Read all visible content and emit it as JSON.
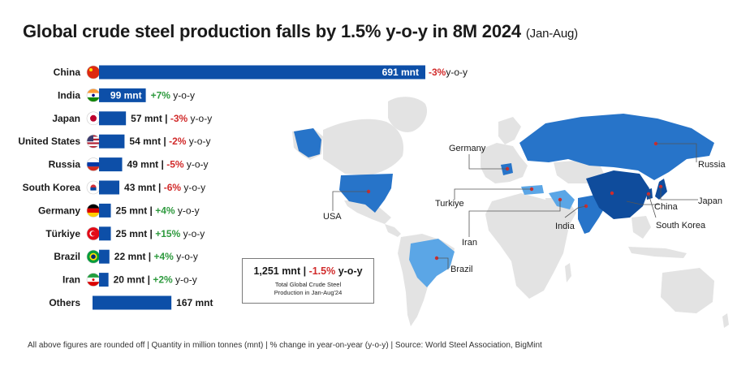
{
  "title": {
    "main": "Global crude steel production falls by 1.5% y-o-y in 8M 2024",
    "period": "(Jan-Aug)"
  },
  "chart_data": {
    "type": "bar",
    "orientation": "horizontal",
    "unit": "mnt",
    "categories": [
      "China",
      "India",
      "Japan",
      "United States",
      "Russia",
      "South Korea",
      "Germany",
      "Türkiye",
      "Brazil",
      "Iran",
      "Others"
    ],
    "values": [
      691,
      99,
      57,
      54,
      49,
      43,
      25,
      25,
      22,
      20,
      167
    ],
    "yoy_change_pct": [
      -3,
      7,
      -3,
      -2,
      -5,
      -6,
      4,
      15,
      4,
      2,
      null
    ],
    "value_labels": [
      "691 mnt",
      "99 mnt",
      "57 mnt",
      "54 mnt",
      "49 mnt",
      "43 mnt",
      "25 mnt",
      "25 mnt",
      "22 mnt",
      "20 mnt",
      "167 mnt"
    ],
    "change_labels": [
      "-3%",
      "+7%",
      "-3%",
      "-2%",
      "-5%",
      "-6%",
      "+4%",
      "+15%",
      "+4%",
      "+2%",
      ""
    ],
    "suffix": "y-o-y",
    "bar_color": "#0d4fa8",
    "positive_color": "#2e9a3e",
    "negative_color": "#d12b2b"
  },
  "map": {
    "labels": [
      "USA",
      "Germany",
      "Russia",
      "Turkiye",
      "Iran",
      "India",
      "China",
      "Japan",
      "South Korea",
      "Brazil"
    ],
    "colors": {
      "land": "#e3e3e3",
      "light": "#5ba6e6",
      "mid": "#2774c9",
      "dark": "#0f4c9c",
      "marker": "#d12b2b"
    }
  },
  "summary": {
    "total": "1,251 mnt",
    "sep": " | ",
    "change": "-1.5%",
    "suffix": " y-o-y",
    "line1": "Total Global Crude Steel",
    "line2": "Production in Jan-Aug'24"
  },
  "footnote": "All above figures are rounded off | Quantity in million tonnes (mnt) | % change in year-on-year (y-o-y) | Source: World Steel Association, BigMint"
}
